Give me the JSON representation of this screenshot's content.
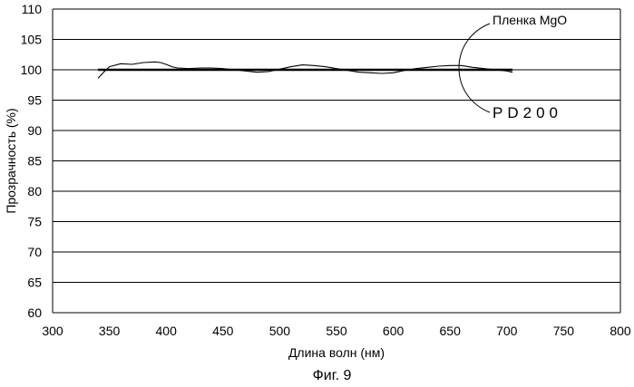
{
  "chart_data": {
    "type": "line",
    "title": "",
    "xlabel": "Длина волн (нм)",
    "ylabel": "Прозрачность (%)",
    "caption": "Фиг. 9",
    "xlim": [
      300,
      800
    ],
    "ylim": [
      60,
      110
    ],
    "x_ticks": [
      300,
      350,
      400,
      450,
      500,
      550,
      600,
      650,
      700,
      750,
      800
    ],
    "y_ticks": [
      60,
      65,
      70,
      75,
      80,
      85,
      90,
      95,
      100,
      105,
      110
    ],
    "grid": "horizontal",
    "legend": "none",
    "annotations": [
      {
        "text": "Пленка MgO",
        "series": "Пленка MgO"
      },
      {
        "text": "PD200",
        "series": "PD200"
      }
    ],
    "series": [
      {
        "name": "Пленка MgO",
        "x": [
          340,
          345,
          350,
          360,
          370,
          380,
          390,
          395,
          400,
          405,
          410,
          420,
          430,
          440,
          450,
          460,
          470,
          480,
          490,
          500,
          510,
          520,
          530,
          540,
          550,
          560,
          570,
          580,
          590,
          600,
          610,
          620,
          630,
          640,
          650,
          660,
          670,
          680,
          690,
          700,
          705
        ],
        "y": [
          98.6,
          99.6,
          100.5,
          101.0,
          100.9,
          101.2,
          101.3,
          101.2,
          100.9,
          100.5,
          100.3,
          100.2,
          100.3,
          100.3,
          100.2,
          100.0,
          99.8,
          99.6,
          99.7,
          100.1,
          100.5,
          100.8,
          100.7,
          100.5,
          100.2,
          99.9,
          99.6,
          99.5,
          99.4,
          99.5,
          99.9,
          100.2,
          100.4,
          100.6,
          100.7,
          100.7,
          100.4,
          100.2,
          100.0,
          99.8,
          99.6
        ]
      },
      {
        "name": "PD200",
        "x": [
          340,
          705
        ],
        "y": [
          100.0,
          100.0
        ]
      }
    ]
  }
}
